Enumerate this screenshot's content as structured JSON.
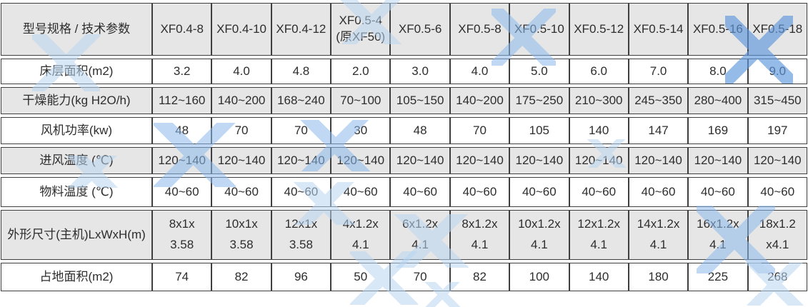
{
  "table": {
    "corner_label": "型号规格 / 技术参数",
    "columns": [
      {
        "label": "XF0.4-8",
        "sub": ""
      },
      {
        "label": "XF0.4-10",
        "sub": ""
      },
      {
        "label": "XF0.4-12",
        "sub": ""
      },
      {
        "label": "XF0.5-4",
        "sub": "(原XF50)"
      },
      {
        "label": "XF0.5-6",
        "sub": ""
      },
      {
        "label": "XF0.5-8",
        "sub": ""
      },
      {
        "label": "XF0.5-10",
        "sub": ""
      },
      {
        "label": "XF0.5-12",
        "sub": ""
      },
      {
        "label": "XF0.5-14",
        "sub": ""
      },
      {
        "label": "XF0.5-16",
        "sub": ""
      },
      {
        "label": "XF0.5-18",
        "sub": ""
      }
    ],
    "rows": [
      {
        "key": "bed",
        "label": "床层面积(m2)",
        "shaded": false,
        "values": [
          "3.2",
          "4.0",
          "4.8",
          "2.0",
          "3.0",
          "4.0",
          "5.0",
          "6.0",
          "7.0",
          "8.0",
          "9.0"
        ]
      },
      {
        "key": "dry",
        "label": "干燥能力(kg H2O/h)",
        "shaded": true,
        "values": [
          "112~160",
          "140~200",
          "168~240",
          "70~100",
          "105~150",
          "140~200",
          "175~250",
          "210~300",
          "245~350",
          "280~400",
          "315~450"
        ]
      },
      {
        "key": "fan",
        "label": "风机功率(kw)",
        "shaded": false,
        "values": [
          "48",
          "70",
          "70",
          "30",
          "48",
          "70",
          "105",
          "140",
          "147",
          "169",
          "197"
        ]
      },
      {
        "key": "inlet",
        "label": "进风温度 (℃)",
        "shaded": true,
        "values": [
          "120~140",
          "120~140",
          "120~140",
          "120~140",
          "120~140",
          "120~140",
          "120~140",
          "120~140",
          "120~140",
          "120~140",
          "120~140"
        ]
      },
      {
        "key": "mat",
        "label": "物料温度 (℃)",
        "shaded": false,
        "values": [
          "40~60",
          "40~60",
          "40~60",
          "40~60",
          "40~60",
          "40~60",
          "40~60",
          "40~60",
          "40~60",
          "40~60",
          "40~60"
        ]
      },
      {
        "key": "dim",
        "label": "外形尺寸(主机)LxWxH(m)",
        "shaded": true,
        "values_lines": [
          [
            "8x1x",
            "3.58"
          ],
          [
            "10x1x",
            "3.58"
          ],
          [
            "12x1x",
            "3.58"
          ],
          [
            "4x1.2x",
            "4.1"
          ],
          [
            "6x1.2x",
            "4.1"
          ],
          [
            "8x1.2x",
            "4.1"
          ],
          [
            "10x1.2x",
            "4.1"
          ],
          [
            "12x1.2x",
            "4.1"
          ],
          [
            "14x1.2x",
            "4.1"
          ],
          [
            "16x1.2x",
            "4.1"
          ],
          [
            "18x1.2",
            "x4.1"
          ]
        ]
      },
      {
        "key": "floor",
        "label": "占地面积(m2)",
        "shaded": false,
        "values": [
          "74",
          "82",
          "96",
          "50",
          "70",
          "82",
          "100",
          "140",
          "180",
          "225",
          "268"
        ]
      }
    ]
  },
  "colors": {
    "header_bg": "#e6e6e6",
    "shaded_row_bg": "#e6e6e6",
    "row_bg": "#ffffff",
    "border": "#3f3f3f",
    "text": "#2d2d2d",
    "watermark_light": "#b9d6f2",
    "watermark_medium": "#8db9ea",
    "watermark_dark": "#5e97dd"
  }
}
